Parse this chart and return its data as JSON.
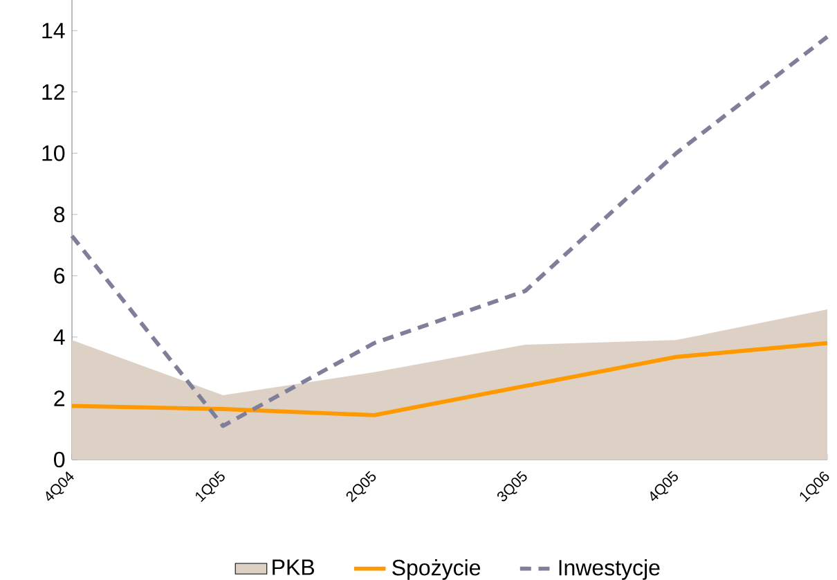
{
  "chart_data": {
    "type": "line",
    "categories": [
      "4Q04",
      "1Q05",
      "2Q05",
      "3Q05",
      "4Q05",
      "1Q06"
    ],
    "series": [
      {
        "name": "PKB",
        "type": "area",
        "color": "#ddd1c6",
        "values": [
          3.9,
          2.1,
          2.85,
          3.75,
          3.9,
          4.9
        ]
      },
      {
        "name": "Spożycie",
        "color": "#ff9900",
        "line_style": "solid",
        "values": [
          1.75,
          1.65,
          1.45,
          2.4,
          3.35,
          3.8
        ]
      },
      {
        "name": "Inwestycje",
        "color": "#7f7f99",
        "line_style": "dashed",
        "values": [
          7.3,
          1.1,
          3.8,
          5.5,
          10.0,
          13.8
        ]
      }
    ],
    "ylim": [
      0,
      15
    ],
    "yticks": [
      0,
      2,
      4,
      6,
      8,
      10,
      12,
      14
    ],
    "grid": false,
    "legend": "bottom",
    "marker": "none"
  }
}
